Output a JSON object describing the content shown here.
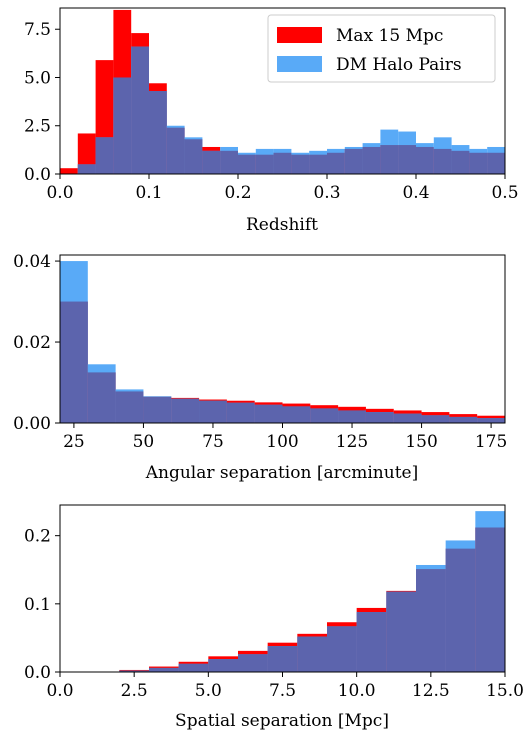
{
  "colors": {
    "red_series": "#ff0000",
    "blue_series": "#59aaf7",
    "overlap": "#5c64ad"
  },
  "legend": {
    "placement": "top-right",
    "entries": [
      {
        "label": "Max 15 Mpc",
        "color": "#ff0000"
      },
      {
        "label": "DM Halo Pairs",
        "color": "#59aaf7"
      }
    ]
  },
  "chart_data": [
    {
      "type": "bar",
      "subtype": "histogram",
      "xlabel": "Redshift",
      "ylabel": "",
      "xlim": [
        0,
        0.5
      ],
      "ylim": [
        0,
        8.6
      ],
      "xticks": [
        "0.0",
        "0.1",
        "0.2",
        "0.3",
        "0.4",
        "0.5"
      ],
      "yticks": [
        "0.0",
        "2.5",
        "5.0",
        "7.5"
      ],
      "legend": "top-right",
      "grid": false,
      "bin_edges": [
        0,
        0.02,
        0.04,
        0.06,
        0.08,
        0.1,
        0.12,
        0.14,
        0.16,
        0.18,
        0.2,
        0.22,
        0.24,
        0.26,
        0.28,
        0.3,
        0.32,
        0.34,
        0.36,
        0.38,
        0.4,
        0.42,
        0.44,
        0.46,
        0.48,
        0.5
      ],
      "series": [
        {
          "name": "Max 15 Mpc",
          "values": [
            0.3,
            2.1,
            5.9,
            8.5,
            7.3,
            4.7,
            2.4,
            1.8,
            1.4,
            1.2,
            1.0,
            1.0,
            1.1,
            1.0,
            1.0,
            1.1,
            1.3,
            1.4,
            1.5,
            1.5,
            1.4,
            1.3,
            1.2,
            1.1,
            1.1
          ]
        },
        {
          "name": "DM Halo Pairs",
          "values": [
            0.0,
            0.5,
            1.9,
            5.0,
            6.6,
            4.3,
            2.5,
            1.9,
            1.2,
            1.4,
            1.1,
            1.3,
            1.3,
            1.1,
            1.2,
            1.3,
            1.4,
            1.6,
            2.3,
            2.2,
            1.6,
            1.9,
            1.5,
            1.3,
            1.4
          ]
        }
      ]
    },
    {
      "type": "bar",
      "subtype": "histogram",
      "xlabel": "Angular separation [arcminute]",
      "ylabel": "",
      "xlim": [
        20,
        180
      ],
      "ylim": [
        0,
        0.0415
      ],
      "xticks": [
        "25",
        "50",
        "75",
        "100",
        "125",
        "150",
        "175"
      ],
      "yticks": [
        "0.00",
        "0.02",
        "0.04"
      ],
      "grid": false,
      "bin_edges": [
        20,
        30,
        40,
        50,
        60,
        70,
        80,
        90,
        100,
        110,
        120,
        130,
        140,
        150,
        160,
        170,
        180
      ],
      "series": [
        {
          "name": "Max 15 Mpc",
          "values": [
            0.03,
            0.0125,
            0.0078,
            0.0065,
            0.0062,
            0.0058,
            0.0055,
            0.0051,
            0.0048,
            0.0044,
            0.004,
            0.0035,
            0.0031,
            0.0027,
            0.0022,
            0.0018
          ]
        },
        {
          "name": "DM Halo Pairs",
          "values": [
            0.04,
            0.0145,
            0.0083,
            0.0066,
            0.006,
            0.0055,
            0.005,
            0.0045,
            0.0041,
            0.0036,
            0.0031,
            0.0027,
            0.0023,
            0.0019,
            0.0015,
            0.0012
          ]
        }
      ]
    },
    {
      "type": "bar",
      "subtype": "histogram",
      "xlabel": "Spatial separation [Mpc]",
      "ylabel": "",
      "xlim": [
        0,
        15
      ],
      "ylim": [
        0,
        0.245
      ],
      "xticks": [
        "0.0",
        "2.5",
        "5.0",
        "7.5",
        "10.0",
        "12.5",
        "15.0"
      ],
      "yticks": [
        "0.0",
        "0.1",
        "0.2"
      ],
      "grid": false,
      "bin_edges": [
        0,
        1,
        2,
        3,
        4,
        5,
        6,
        7,
        8,
        9,
        10,
        11,
        12,
        13,
        14,
        15
      ],
      "series": [
        {
          "name": "Max 15 Mpc",
          "values": [
            0.0,
            0.0,
            0.003,
            0.008,
            0.015,
            0.023,
            0.031,
            0.043,
            0.056,
            0.073,
            0.094,
            0.119,
            0.151,
            0.181,
            0.212
          ]
        },
        {
          "name": "DM Halo Pairs",
          "values": [
            0.0,
            0.0,
            0.002,
            0.006,
            0.012,
            0.019,
            0.026,
            0.038,
            0.052,
            0.067,
            0.088,
            0.118,
            0.157,
            0.193,
            0.236
          ]
        }
      ]
    }
  ]
}
